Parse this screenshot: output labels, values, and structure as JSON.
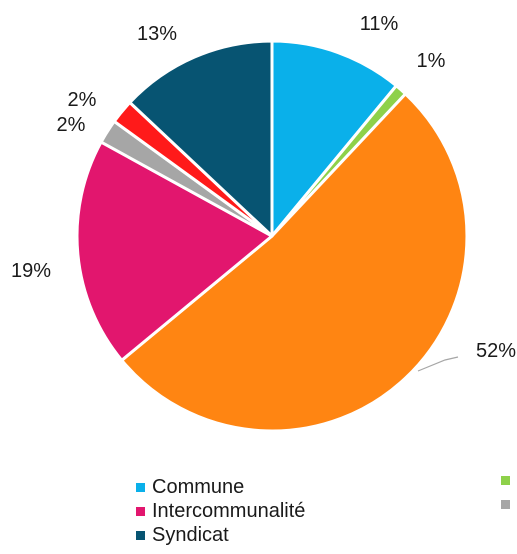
{
  "chart_data": {
    "type": "pie",
    "slices": [
      {
        "label": "Commune",
        "value": 11,
        "display": "11%",
        "color": "#0ab0ea"
      },
      {
        "label": "",
        "value": 1,
        "display": "1%",
        "color": "#8ed14a"
      },
      {
        "label": "",
        "value": 52,
        "display": "52%",
        "color": "#ff8512"
      },
      {
        "label": "Intercommunalité",
        "value": 19,
        "display": "19%",
        "color": "#e2166e"
      },
      {
        "label": "",
        "value": 2,
        "display": "2%",
        "color": "#a6a6a6"
      },
      {
        "label": "",
        "value": 2,
        "display": "2%",
        "color": "#ff1a1a"
      },
      {
        "label": "Syndicat",
        "value": 13,
        "display": "13%",
        "color": "#075472"
      }
    ],
    "legend": {
      "placement": "bottom",
      "entries": [
        {
          "label": "Commune",
          "color": "#0ab0ea"
        },
        {
          "label": "",
          "color": "#8ed14a"
        },
        {
          "label": "Intercommunalité",
          "color": "#e2166e"
        },
        {
          "label": "",
          "color": "#a6a6a6"
        },
        {
          "label": "Syndicat",
          "color": "#075472"
        }
      ]
    }
  }
}
